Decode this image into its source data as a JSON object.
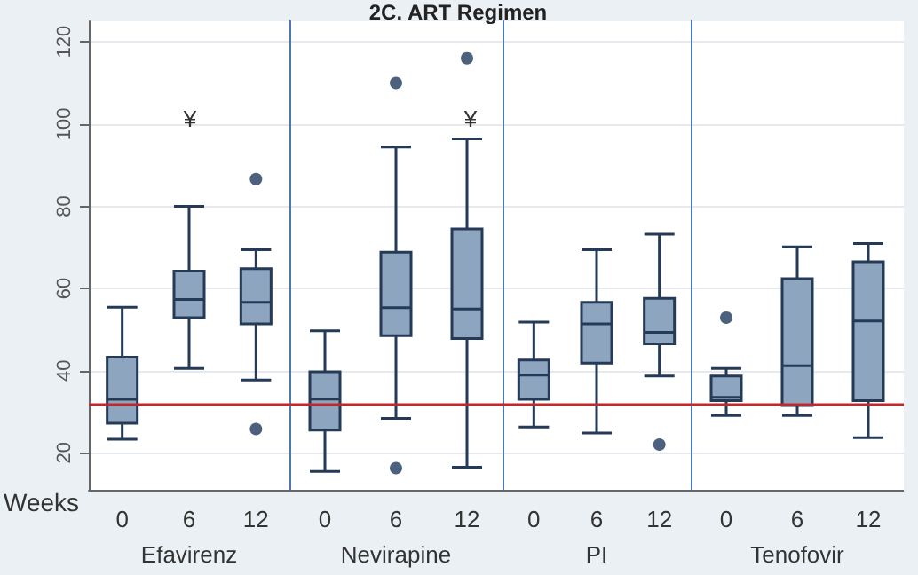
{
  "chart_data": [
    {
      "type": "box",
      "xlabel": "Efavirenz",
      "annotations": [
        "Weeks",
        "¥"
      ],
      "categories": [
        "0",
        "6",
        "12"
      ],
      "color": "#8ea5bf",
      "ylim": [
        11,
        125
      ],
      "yticks": [
        20,
        40,
        60,
        80,
        100,
        120
      ],
      "grid": "y",
      "ref_lines": [
        {
          "axis": "y",
          "value": 32,
          "color": "#c0282d"
        }
      ],
      "boxes": [
        {
          "low": 23.3,
          "q1": 27.2,
          "median": 33,
          "q3": 43.3,
          "high": 55.4
        },
        {
          "low": 40.5,
          "q1": 52.9,
          "median": 57.3,
          "q3": 64.2,
          "high": 80
        },
        {
          "low": 37.7,
          "q1": 51.4,
          "median": 56.6,
          "q3": 64.8,
          "high": 69.4,
          "outliers": [
            86.6,
            25.8
          ]
        }
      ]
    },
    {
      "type": "box",
      "title": "2C. ART Regimen",
      "xlabel": "Nevirapine",
      "annotations": [
        "¥"
      ],
      "categories": [
        "0",
        "6",
        "12"
      ],
      "color": "#8ea5bf",
      "ylim": [
        11,
        125
      ],
      "yticks": [
        20,
        40,
        60,
        80,
        100,
        120
      ],
      "grid": "y",
      "tick_labels": "x",
      "ref_lines": [
        {
          "axis": "y",
          "value": 32,
          "color": "#c0282d"
        }
      ],
      "boxes": [
        {
          "low": 15.5,
          "q1": 25.5,
          "median": 33.1,
          "q3": 39.7,
          "high": 49.7
        },
        {
          "low": 28.4,
          "q1": 48.5,
          "median": 55.3,
          "q3": 68.8,
          "high": 94.4,
          "outliers": [
            110,
            16.3
          ]
        },
        {
          "low": 16.5,
          "q1": 47.8,
          "median": 55,
          "q3": 74.5,
          "high": 96.4,
          "outliers": [
            116
          ]
        }
      ]
    },
    {
      "type": "box",
      "xlabel": "PI",
      "categories": [
        "0",
        "6",
        "12"
      ],
      "color": "#8ea5bf",
      "ylim": [
        11,
        125
      ],
      "yticks": [
        20,
        40,
        60,
        80,
        100,
        120
      ],
      "grid": "y",
      "tick_labels": "x",
      "ref_lines": [
        {
          "axis": "y",
          "value": 32,
          "color": "#c0282d"
        }
      ],
      "boxes": [
        {
          "low": 26.3,
          "q1": 33,
          "median": 38.9,
          "q3": 42.6,
          "high": 51.8
        },
        {
          "low": 24.8,
          "q1": 41.8,
          "median": 51.4,
          "q3": 56.6,
          "high": 69.4
        },
        {
          "low": 38.7,
          "q1": 46.5,
          "median": 49.3,
          "q3": 57.6,
          "high": 73.2,
          "outliers": [
            22
          ]
        }
      ]
    },
    {
      "type": "box",
      "xlabel": "Tenofovir",
      "categories": [
        "0",
        "6",
        "12"
      ],
      "color": "#8ea5bf",
      "ylim": [
        11,
        125
      ],
      "yticks": [
        20,
        40,
        60,
        80,
        100,
        120
      ],
      "grid": "y",
      "tick_labels": "x",
      "ref_lines": [
        {
          "axis": "y",
          "value": 32,
          "color": "#c0282d"
        }
      ],
      "boxes": [
        {
          "low": 29.1,
          "q1": 32.7,
          "median": 33.5,
          "q3": 38.7,
          "high": 40.5,
          "outliers": [
            52.9
          ]
        },
        {
          "low": 29.1,
          "q1": 31.5,
          "median": 41.2,
          "q3": 62.4,
          "high": 70.1
        },
        {
          "low": 23.7,
          "q1": 32.7,
          "median": 52.1,
          "q3": 66.5,
          "high": 70.9
        }
      ]
    }
  ]
}
